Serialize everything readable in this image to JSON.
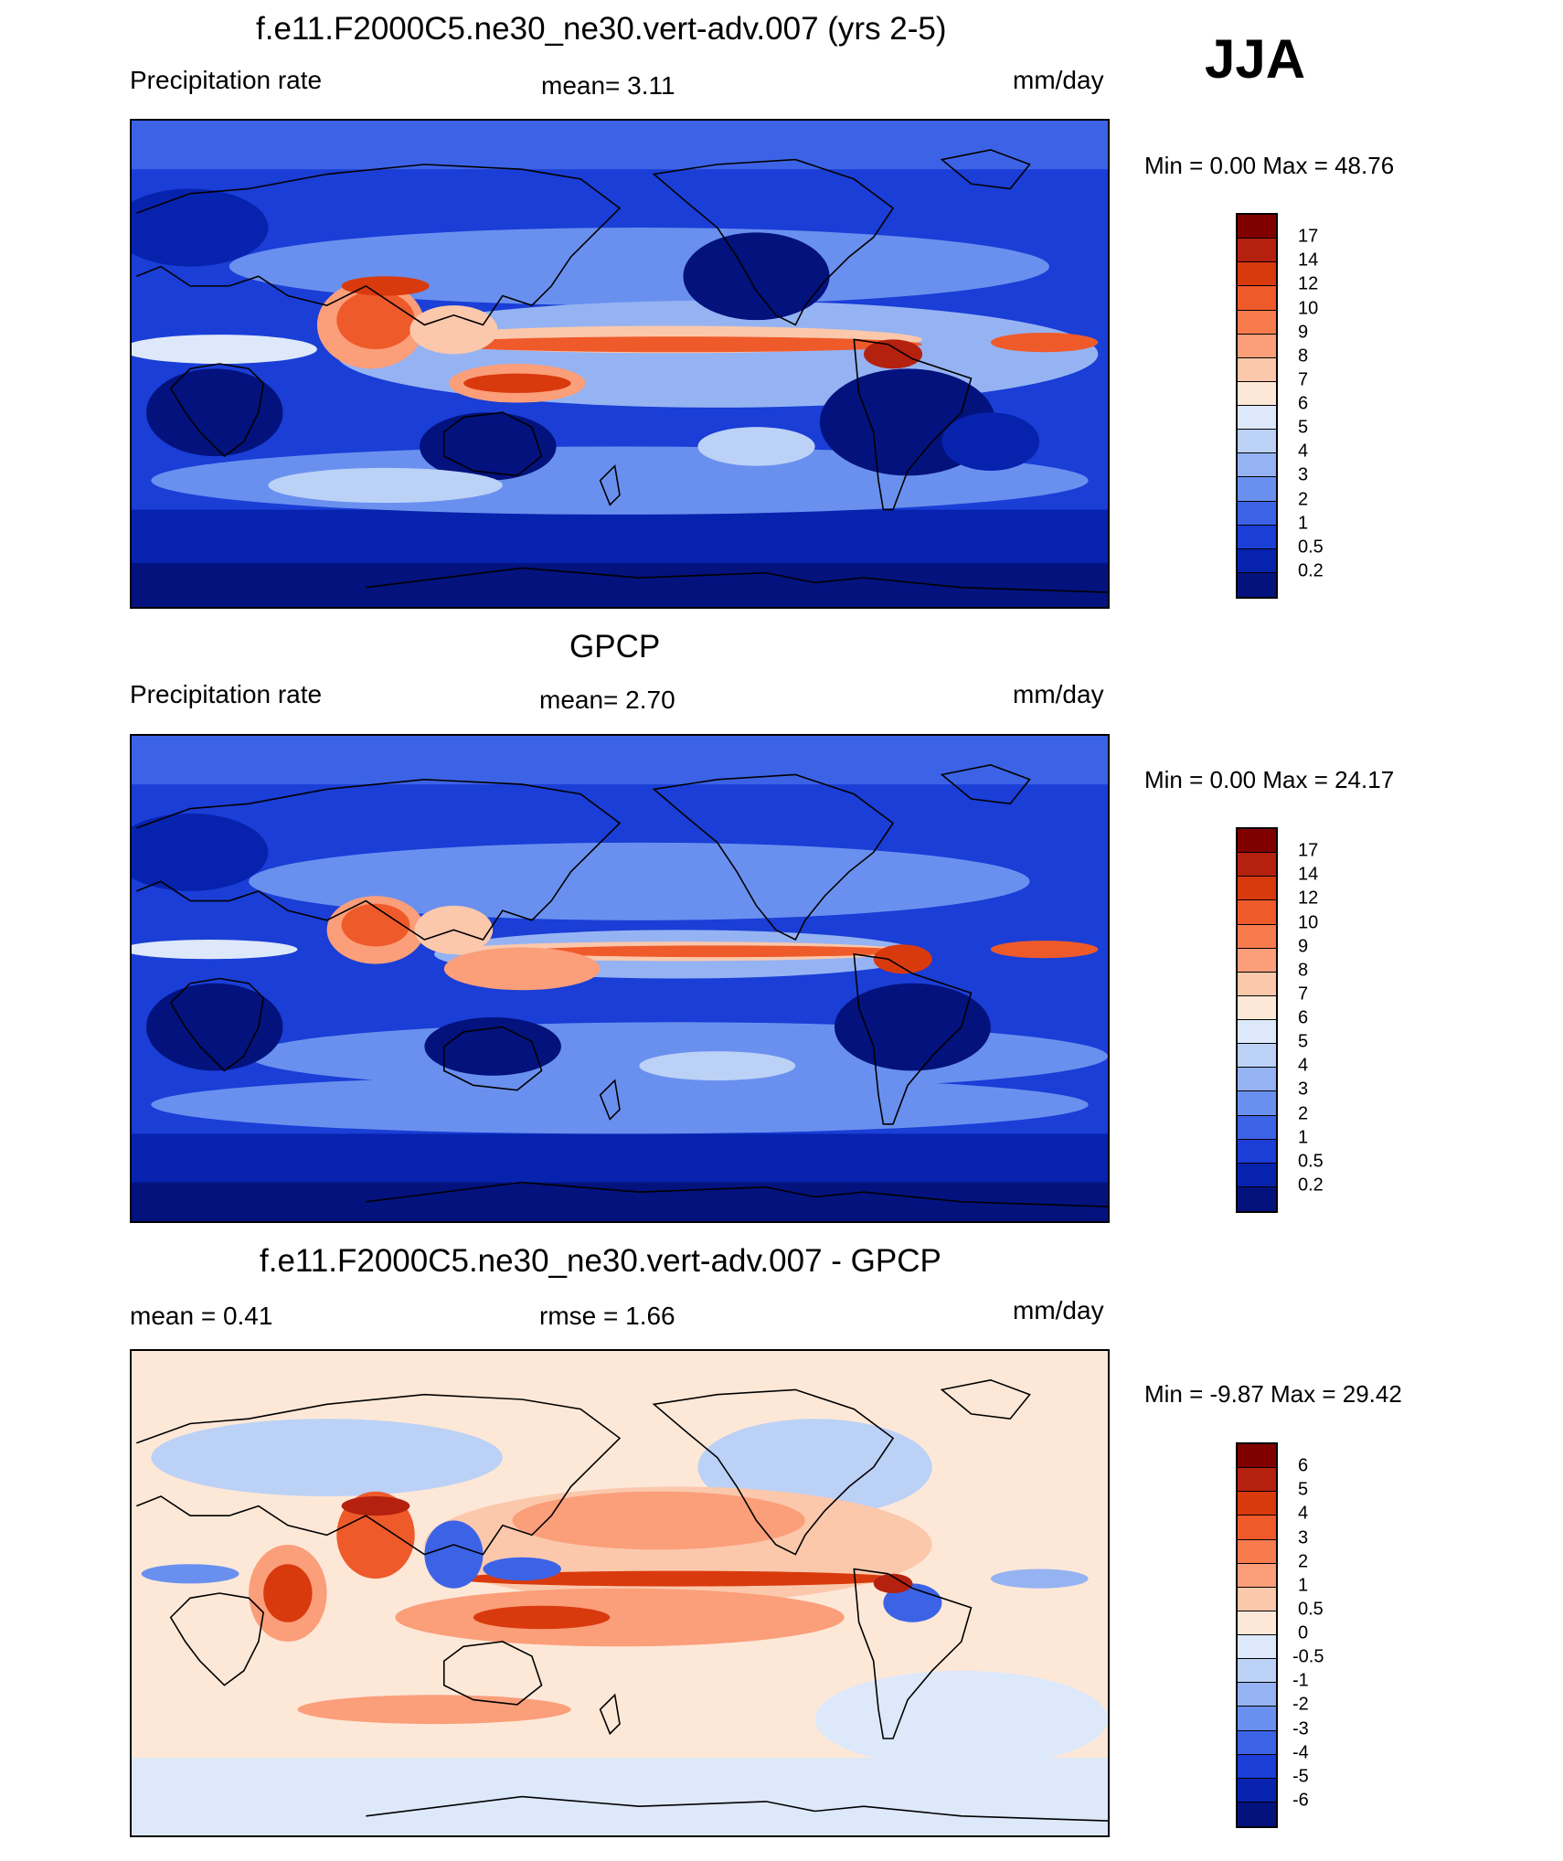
{
  "season": "JJA",
  "panels": [
    {
      "title": "f.e11.F2000C5.ne30_ne30.vert-adv.007 (yrs 2-5)",
      "left_label": "Precipitation rate",
      "center_label": "mean=   3.11",
      "right_label": "mm/day",
      "minmax": "Min =   0.00 Max =  48.76",
      "colorbar": {
        "labels": [
          "17",
          "14",
          "12",
          "10",
          "9",
          "8",
          "7",
          "6",
          "5",
          "4",
          "3",
          "2",
          "1",
          "0.5",
          "0.2"
        ],
        "colors": [
          "#800000",
          "#b5210f",
          "#d93a0d",
          "#ef5a2a",
          "#f87b4e",
          "#fb9e7a",
          "#fbc8ac",
          "#fde8d8",
          "#dde8fa",
          "#bcd1f6",
          "#95b3f2",
          "#6a90ef",
          "#3c63e6",
          "#1a3ed6",
          "#0723ae",
          "#03127d"
        ]
      }
    },
    {
      "title": "GPCP",
      "left_label": "Precipitation rate",
      "center_label": "mean=   2.70",
      "right_label": "mm/day",
      "minmax": "Min =   0.00 Max =  24.17",
      "colorbar": {
        "labels": [
          "17",
          "14",
          "12",
          "10",
          "9",
          "8",
          "7",
          "6",
          "5",
          "4",
          "3",
          "2",
          "1",
          "0.5",
          "0.2"
        ],
        "colors": [
          "#800000",
          "#b5210f",
          "#d93a0d",
          "#ef5a2a",
          "#f87b4e",
          "#fb9e7a",
          "#fbc8ac",
          "#fde8d8",
          "#dde8fa",
          "#bcd1f6",
          "#95b3f2",
          "#6a90ef",
          "#3c63e6",
          "#1a3ed6",
          "#0723ae",
          "#03127d"
        ]
      }
    },
    {
      "title": "f.e11.F2000C5.ne30_ne30.vert-adv.007 - GPCP",
      "left_label": "mean =   0.41",
      "center_label": "rmse =   1.66",
      "right_label": "mm/day",
      "minmax": "Min =  -9.87 Max =  29.42",
      "colorbar": {
        "labels": [
          "6",
          "5",
          "4",
          "3",
          "2",
          "1",
          "0.5",
          "0",
          "-0.5",
          "-1",
          "-2",
          "-3",
          "-4",
          "-5",
          "-6"
        ],
        "colors": [
          "#800000",
          "#b5210f",
          "#d93a0d",
          "#ef5a2a",
          "#f87b4e",
          "#fb9e7a",
          "#fbc8ac",
          "#fde8d8",
          "#dde8fa",
          "#bcd1f6",
          "#95b3f2",
          "#6a90ef",
          "#3c63e6",
          "#1a3ed6",
          "#0723ae",
          "#03127d"
        ]
      }
    }
  ]
}
